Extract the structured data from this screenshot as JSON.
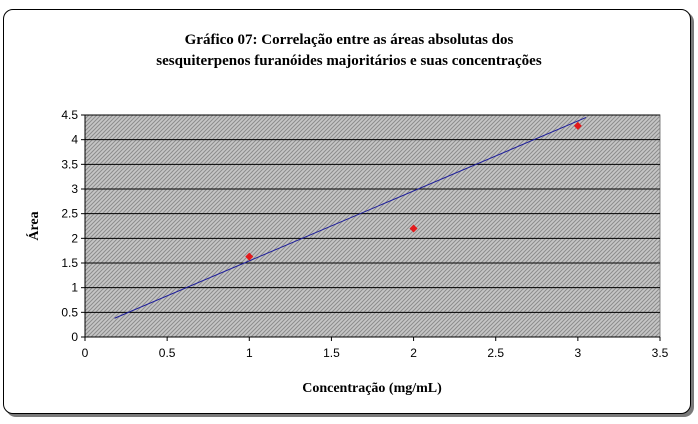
{
  "chart_data": {
    "type": "scatter",
    "title": "Gráfico 07: Correlação entre as áreas absolutas dos",
    "subtitle": "sesquiterpenos furanóides majoritários e suas concentrações",
    "xlabel": "Concentração (mg/mL)",
    "ylabel": "Área",
    "xlim": [
      0,
      3.5
    ],
    "ylim": [
      0,
      4.5
    ],
    "x_ticks": [
      "0",
      "0.5",
      "1",
      "1.5",
      "2",
      "2.5",
      "3",
      "3.5"
    ],
    "y_ticks": [
      "0",
      "0.5",
      "1",
      "1.5",
      "2",
      "2.5",
      "3",
      "3.5",
      "4",
      "4.5"
    ],
    "grid": "horizontal",
    "background": "hatched-gray",
    "series": [
      {
        "kind": "points",
        "marker": "diamond",
        "color": "#e31a1c",
        "x": [
          1,
          2,
          3
        ],
        "y": [
          1.63,
          2.2,
          4.28
        ]
      },
      {
        "kind": "trendline",
        "color": "#1f1f9c",
        "x": [
          0.18,
          3.05
        ],
        "y": [
          0.38,
          4.45
        ]
      }
    ]
  }
}
